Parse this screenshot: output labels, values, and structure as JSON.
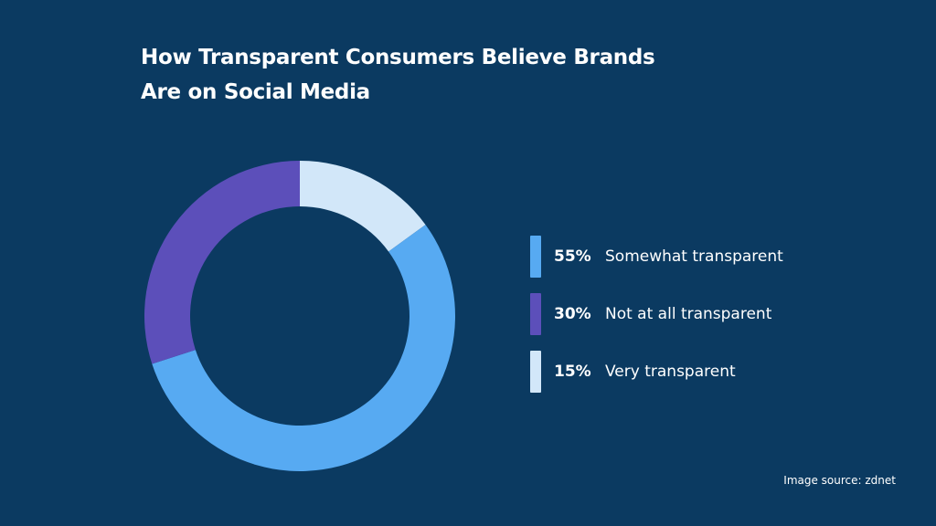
{
  "title_lines": [
    "How Transparent Consumers Believe Brands",
    "Are on Social Media"
  ],
  "source": "Image source: zdnet",
  "colors": {
    "background": "#0b3a61",
    "somewhat": "#57aaf2",
    "not_at_all": "#5c4fba",
    "very": "#d2e7f9"
  },
  "chart_data": {
    "type": "pie",
    "donut": true,
    "title": "How Transparent Consumers Believe Brands Are on Social Media",
    "start_angle_deg": 0,
    "direction": "clockwise",
    "slice_order": [
      "Very transparent",
      "Somewhat transparent",
      "Not at all transparent"
    ],
    "legend_position": "right",
    "slices": [
      {
        "label": "Somewhat transparent",
        "value": 55,
        "display": "55%",
        "color": "#57aaf2"
      },
      {
        "label": "Not at all transparent",
        "value": 30,
        "display": "30%",
        "color": "#5c4fba"
      },
      {
        "label": "Very transparent",
        "value": 15,
        "display": "15%",
        "color": "#d2e7f9"
      }
    ]
  }
}
